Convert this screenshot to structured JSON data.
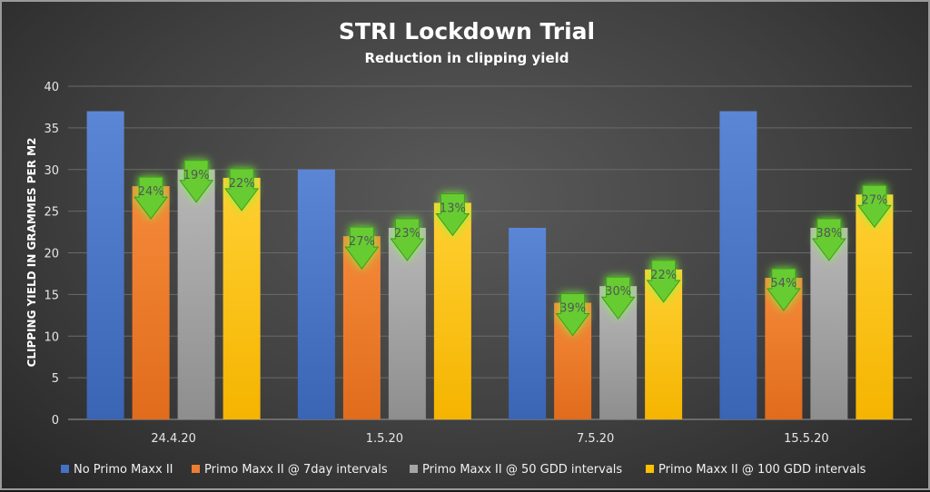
{
  "chart_data": {
    "type": "bar",
    "title": "STRI Lockdown Trial",
    "subtitle": "Reduction in clipping yield",
    "xlabel": "",
    "ylabel": "CLIPPING YIELD IN GRAMMES PER M2",
    "ylim": [
      0,
      40
    ],
    "yticks": [
      0,
      5,
      10,
      15,
      20,
      25,
      30,
      35,
      40
    ],
    "grid": true,
    "legend_position": "bottom",
    "categories": [
      "24.4.20",
      "1.5.20",
      "7.5.20",
      "15.5.20"
    ],
    "series": [
      {
        "name": "No Primo Maxx II",
        "color": "#4472c4",
        "values": [
          37,
          30,
          23,
          37
        ]
      },
      {
        "name": "Primo Maxx II @ 7day intervals",
        "color": "#ed7d31",
        "values": [
          28,
          22,
          14,
          17
        ]
      },
      {
        "name": "Primo Maxx II @ 50 GDD intervals",
        "color": "#a5a5a5",
        "values": [
          30,
          23,
          16,
          23
        ]
      },
      {
        "name": "Primo Maxx II @ 100 GDD intervals",
        "color": "#ffc000",
        "values": [
          29,
          26,
          18,
          27
        ]
      }
    ],
    "annotations": [
      {
        "category": "24.4.20",
        "series": 1,
        "label": "24%"
      },
      {
        "category": "24.4.20",
        "series": 2,
        "label": "19%"
      },
      {
        "category": "24.4.20",
        "series": 3,
        "label": "22%"
      },
      {
        "category": "1.5.20",
        "series": 1,
        "label": "27%"
      },
      {
        "category": "1.5.20",
        "series": 2,
        "label": "23%"
      },
      {
        "category": "1.5.20",
        "series": 3,
        "label": "13%"
      },
      {
        "category": "7.5.20",
        "series": 1,
        "label": "39%"
      },
      {
        "category": "7.5.20",
        "series": 2,
        "label": "30%"
      },
      {
        "category": "7.5.20",
        "series": 3,
        "label": "22%"
      },
      {
        "category": "15.5.20",
        "series": 1,
        "label": "54%"
      },
      {
        "category": "15.5.20",
        "series": 2,
        "label": "38%"
      },
      {
        "category": "15.5.20",
        "series": 3,
        "label": "27%"
      }
    ],
    "annotation_color": "#66cc33"
  }
}
